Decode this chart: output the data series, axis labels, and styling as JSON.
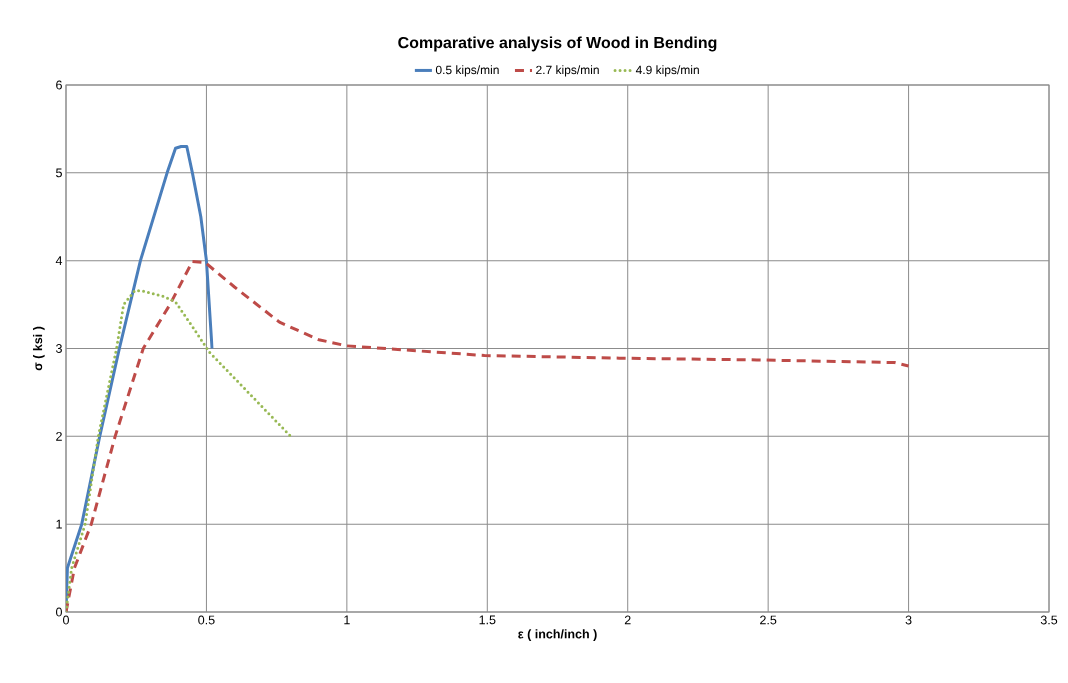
{
  "chart_data": {
    "type": "line",
    "title": "Comparative analysis of Wood in Bending",
    "xlabel": "ε ( inch/inch )",
    "ylabel": "σ ( ksi )",
    "xlim": [
      0,
      3.5
    ],
    "ylim": [
      0,
      6
    ],
    "xticks": [
      0,
      0.5,
      1,
      1.5,
      2,
      2.5,
      3,
      3.5
    ],
    "yticks": [
      0,
      1,
      2,
      3,
      4,
      5,
      6
    ],
    "grid": true,
    "legend": "top",
    "marker": "none",
    "series": [
      {
        "name": "0.5 kips/min",
        "color": "#4a7ebb",
        "line_style": "solid",
        "x": [
          0,
          0.005,
          0.056,
          0.12,
          0.19,
          0.265,
          0.36,
          0.39,
          0.41,
          0.43,
          0.45,
          0.48,
          0.5,
          0.52
        ],
        "values": [
          0,
          0.5,
          1,
          2,
          3,
          4,
          5,
          5.28,
          5.3,
          5.3,
          5.0,
          4.5,
          4.0,
          3.0
        ]
      },
      {
        "name": "2.7 kips/min",
        "color": "#be4b48",
        "line_style": "dashed",
        "x": [
          0,
          0.03,
          0.09,
          0.175,
          0.275,
          0.37,
          0.45,
          0.495,
          0.6,
          0.76,
          0.9,
          1.0,
          1.49,
          1.97,
          2.46,
          2.95,
          3.0
        ],
        "values": [
          0,
          0.5,
          1,
          2,
          3,
          3.5,
          3.99,
          3.98,
          3.7,
          3.3,
          3.1,
          3.03,
          2.92,
          2.89,
          2.87,
          2.84,
          2.8
        ]
      },
      {
        "name": "4.9 kips/min",
        "color": "#98b954",
        "line_style": "dotted",
        "x": [
          0,
          0.02,
          0.068,
          0.115,
          0.18,
          0.205,
          0.245,
          0.28,
          0.35,
          0.39,
          0.45,
          0.51,
          0.8
        ],
        "values": [
          0,
          0.5,
          1,
          2,
          3,
          3.5,
          3.66,
          3.65,
          3.59,
          3.53,
          3.25,
          2.96,
          2.0
        ]
      }
    ]
  }
}
